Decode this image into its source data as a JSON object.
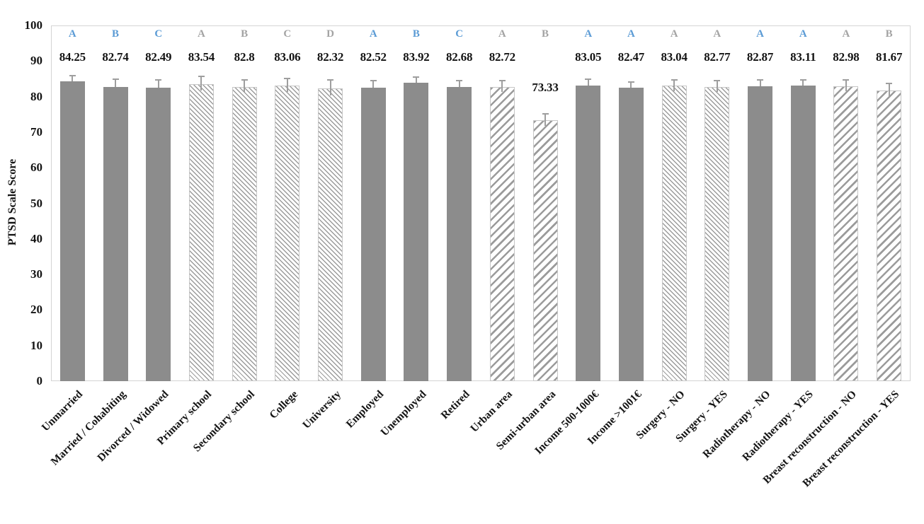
{
  "chart_data": {
    "type": "bar",
    "title": "",
    "ylabel": "PTSD Scale Score",
    "xlabel": "",
    "ylim": [
      0,
      100
    ],
    "yticks": [
      0,
      10,
      20,
      30,
      40,
      50,
      60,
      70,
      80,
      90,
      100
    ],
    "grid": false,
    "legend": "none",
    "categories": [
      "Unmarried",
      "Married / Cohabiting",
      "Divorced / Widowed",
      "Primary school",
      "Secondary school",
      "College",
      "University",
      "Employed",
      "Unemployed",
      "Retired",
      "Urban area",
      "Semi-urban area",
      "Income 500-1000€",
      "Income >1001€",
      "Surgery - NO",
      "Surgery - YES",
      "Radiotherapy - NO",
      "Radiotherapy - YES",
      "Breast reconstruction - NO",
      "Breast reconstruction - YES"
    ],
    "values": [
      84.25,
      82.74,
      82.49,
      83.54,
      82.8,
      83.06,
      82.32,
      82.52,
      83.92,
      82.68,
      82.72,
      73.33,
      83.05,
      82.47,
      83.04,
      82.77,
      82.87,
      83.11,
      82.98,
      81.67
    ],
    "errors": [
      1.6,
      2.2,
      2.2,
      2.1,
      1.8,
      2.0,
      2.3,
      1.9,
      1.6,
      1.8,
      1.7,
      1.9,
      1.8,
      1.7,
      1.7,
      1.8,
      1.8,
      1.6,
      1.7,
      2.0
    ],
    "letters": [
      "A",
      "B",
      "C",
      "A",
      "B",
      "C",
      "D",
      "A",
      "B",
      "C",
      "A",
      "B",
      "A",
      "A",
      "A",
      "A",
      "A",
      "A",
      "A",
      "B"
    ],
    "letter_colors": [
      "blue",
      "blue",
      "blue",
      "gray",
      "gray",
      "gray",
      "gray",
      "blue",
      "blue",
      "blue",
      "gray",
      "gray",
      "blue",
      "blue",
      "gray",
      "gray",
      "blue",
      "blue",
      "gray",
      "gray"
    ],
    "bar_fills": [
      "solid",
      "solid",
      "solid",
      "hatch-fine",
      "hatch-fine",
      "hatch-fine",
      "hatch-fine",
      "solid",
      "solid",
      "solid",
      "hatch-wide",
      "hatch-wide",
      "solid",
      "solid",
      "hatch-fine",
      "hatch-fine",
      "solid",
      "solid",
      "hatch-wide",
      "hatch-wide"
    ],
    "value_label_placement": [
      "row",
      "row",
      "row",
      "row",
      "row",
      "row",
      "row",
      "row",
      "row",
      "row",
      "row",
      "above-bar",
      "row",
      "row",
      "row",
      "row",
      "row",
      "row",
      "row",
      "row"
    ]
  },
  "colors": {
    "bar_solid": "#8C8C8C",
    "hatch_stripe": "#9B9B9B",
    "hatch_background": "#FFFFFF",
    "hatched_bar_border": "#C6C6C6",
    "error_bar": "#9E9E9E",
    "plot_border": "#D4D4D4",
    "text": "#141414",
    "letter_blue": "#5B9BD5",
    "letter_gray": "#A3A3A3",
    "background": "#FFFFFF"
  }
}
